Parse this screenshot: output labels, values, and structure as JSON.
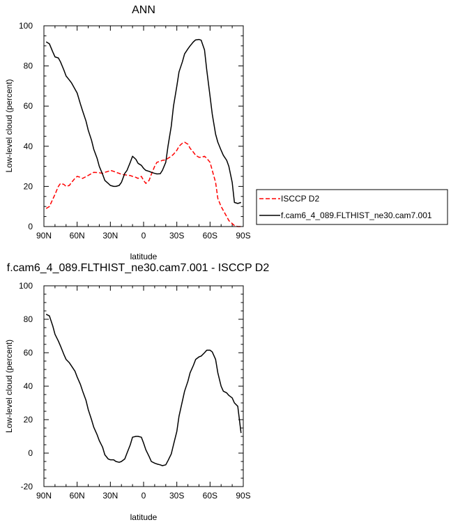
{
  "chart_data": [
    {
      "type": "line",
      "title": "ANN",
      "xlabel": "latitude",
      "ylabel": "Low-level cloud (percent)",
      "xlim": [
        90,
        -90
      ],
      "ylim": [
        0,
        100
      ],
      "xticks": [
        90,
        60,
        30,
        0,
        -30,
        -60,
        -90
      ],
      "xtick_labels": [
        "90N",
        "60N",
        "30N",
        "0",
        "30S",
        "60S",
        "90S"
      ],
      "yticks": [
        0,
        20,
        40,
        60,
        80,
        100
      ],
      "ytick_labels": [
        "0",
        "20",
        "40",
        "60",
        "80",
        "100"
      ],
      "grid": false,
      "legend_position": "right",
      "series": [
        {
          "name": "ISCCP D2",
          "color": "#ff0000",
          "dash": "dashed",
          "x": [
            88,
            85,
            80,
            77,
            75,
            72,
            70,
            67,
            65,
            62,
            60,
            57,
            55,
            50,
            45,
            40,
            37,
            35,
            32,
            30,
            27,
            25,
            22,
            20,
            17,
            15,
            12,
            10,
            7,
            5,
            2,
            0,
            -2,
            -5,
            -7,
            -10,
            -12,
            -15,
            -17,
            -20,
            -22,
            -25,
            -27,
            -30,
            -32,
            -35,
            -37,
            -40,
            -42,
            -45,
            -47,
            -50,
            -52,
            -55,
            -57,
            -60,
            -62,
            -65,
            -67,
            -70,
            -72,
            -75,
            -77,
            -80,
            -82,
            -85,
            -88
          ],
          "y": [
            9,
            10,
            16,
            20,
            21.5,
            21,
            20,
            20.5,
            22,
            24,
            25,
            24.5,
            24,
            25.5,
            27,
            26.8,
            26.5,
            27,
            27.5,
            28,
            27.5,
            27,
            26.5,
            26,
            25.8,
            25.6,
            25.4,
            25,
            24.5,
            24,
            25,
            23,
            21.5,
            23,
            26,
            30,
            32,
            32.5,
            33,
            33.2,
            34,
            35,
            36,
            38,
            40,
            41.5,
            42,
            41,
            39,
            37,
            35.5,
            34.5,
            34.5,
            35,
            34,
            32,
            28,
            22,
            14,
            10,
            8,
            5,
            3,
            1.5,
            0.5,
            0,
            0
          ]
        },
        {
          "name": "f.cam6_4_089.FLTHIST_ne30.cam7.001",
          "color": "#000000",
          "dash": "solid",
          "x": [
            88,
            85,
            82,
            80,
            77,
            75,
            72,
            70,
            67,
            65,
            62,
            60,
            57,
            55,
            52,
            50,
            47,
            45,
            42,
            40,
            37,
            35,
            32,
            30,
            27,
            25,
            22,
            20,
            17,
            15,
            12,
            10,
            7,
            5,
            2,
            0,
            -2,
            -5,
            -7,
            -10,
            -12,
            -15,
            -17,
            -20,
            -22,
            -25,
            -27,
            -30,
            -32,
            -35,
            -37,
            -40,
            -42,
            -45,
            -47,
            -50,
            -52,
            -55,
            -57,
            -60,
            -62,
            -65,
            -67,
            -70,
            -72,
            -75,
            -77,
            -80,
            -82,
            -85,
            -88
          ],
          "y": [
            92,
            91,
            87,
            84.5,
            84,
            82,
            78,
            75,
            73,
            71.5,
            68.5,
            66.5,
            61,
            57.5,
            52.5,
            48,
            43,
            38.5,
            34,
            30,
            26,
            23,
            21.5,
            20.5,
            20,
            20,
            20.5,
            22,
            26.5,
            28,
            32,
            35,
            33.5,
            31.5,
            30.5,
            29,
            28,
            27.5,
            27,
            26.5,
            26.2,
            26.3,
            28,
            32,
            40,
            50,
            60,
            70,
            77,
            82,
            86,
            88.5,
            90,
            92,
            93,
            93.2,
            92.8,
            88,
            78,
            65,
            56,
            46,
            42,
            38,
            35.5,
            33,
            30,
            22,
            12,
            11.5,
            12
          ]
        }
      ]
    },
    {
      "type": "line",
      "title": "f.cam6_4_089.FLTHIST_ne30.cam7.001 - ISCCP D2",
      "xlabel": "latitude",
      "ylabel": "Low-level cloud (percent)",
      "xlim": [
        90,
        -90
      ],
      "ylim": [
        -20,
        100
      ],
      "xticks": [
        90,
        60,
        30,
        0,
        -30,
        -60,
        -90
      ],
      "xtick_labels": [
        "90N",
        "60N",
        "30N",
        "0",
        "30S",
        "60S",
        "90S"
      ],
      "yticks": [
        -20,
        0,
        20,
        40,
        60,
        80,
        100
      ],
      "ytick_labels": [
        "-20",
        "0",
        "20",
        "40",
        "60",
        "80",
        "100"
      ],
      "grid": false,
      "series": [
        {
          "color": "#000000",
          "dash": "solid",
          "x": [
            88,
            85,
            82,
            80,
            77,
            75,
            72,
            70,
            67,
            65,
            62,
            60,
            57,
            55,
            52,
            50,
            47,
            45,
            42,
            40,
            37,
            35,
            32,
            30,
            27,
            25,
            22,
            20,
            17,
            15,
            12,
            10,
            7,
            5,
            2,
            0,
            -2,
            -5,
            -7,
            -10,
            -12,
            -15,
            -17,
            -20,
            -22,
            -25,
            -27,
            -30,
            -32,
            -35,
            -37,
            -40,
            -42,
            -45,
            -47,
            -50,
            -52,
            -55,
            -57,
            -60,
            -62,
            -65,
            -67,
            -70,
            -72,
            -75,
            -77,
            -80,
            -82,
            -85,
            -88
          ],
          "y": [
            83,
            82,
            76,
            71,
            67,
            64,
            59,
            56,
            54,
            52,
            49,
            45.5,
            41,
            37,
            31.5,
            26,
            20,
            15.5,
            11,
            7.5,
            3.5,
            -1,
            -3.5,
            -4,
            -4,
            -5,
            -5.5,
            -5,
            -3.5,
            0,
            5,
            9.5,
            10,
            10,
            9.5,
            6,
            2,
            -2,
            -5,
            -6,
            -6.5,
            -7,
            -7.5,
            -7,
            -4.5,
            -0.5,
            5,
            13,
            22,
            31,
            37,
            43,
            48,
            52.5,
            56,
            57.5,
            58,
            60,
            61.5,
            61.5,
            60.5,
            56,
            48,
            40,
            37,
            36,
            34.5,
            33,
            30,
            28,
            12
          ]
        }
      ]
    }
  ]
}
